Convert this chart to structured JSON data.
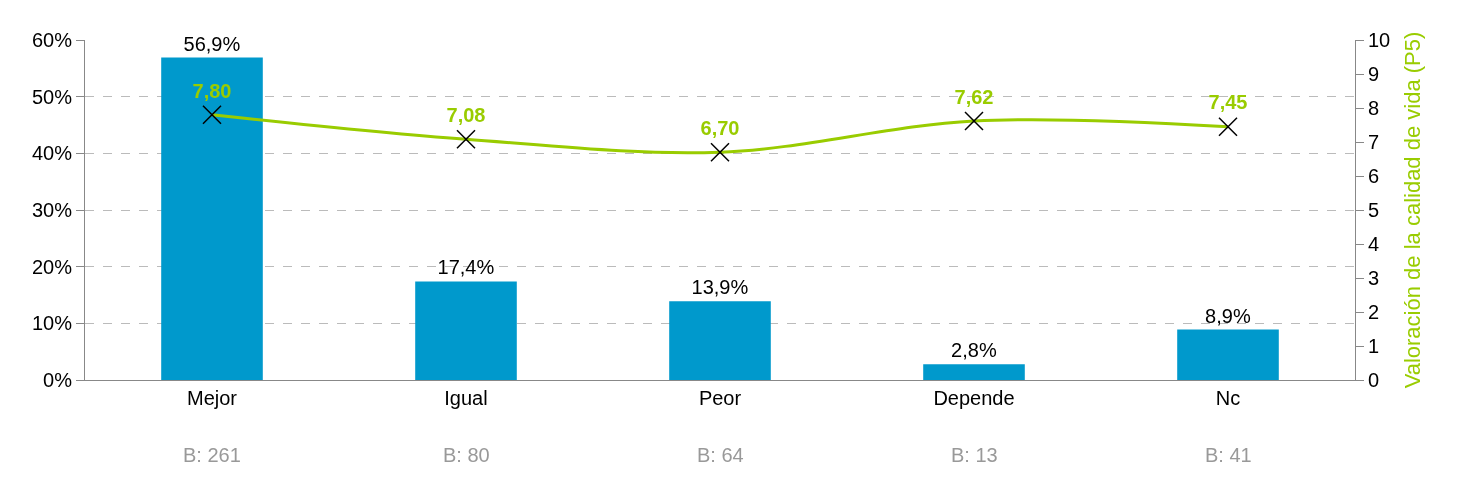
{
  "chart_data": {
    "type": "bar",
    "categories": [
      "Mejor",
      "Igual",
      "Peor",
      "Depende",
      "Nc"
    ],
    "series": [
      {
        "color": "#0099cc",
        "values": [
          56.9,
          17.4,
          13.9,
          2.8,
          8.9
        ],
        "value_labels": [
          "56,9%",
          "17,4%",
          "13,9%",
          "2,8%",
          "8,9%"
        ]
      },
      {
        "type": "line",
        "axis": "y2",
        "color": "#99cc00",
        "marker": "cross",
        "values": [
          7.8,
          7.08,
          6.7,
          7.62,
          7.45
        ],
        "value_labels": [
          "7,80",
          "7,08",
          "6,70",
          "7,62",
          "7,45"
        ]
      }
    ],
    "ylim": [
      0,
      60
    ],
    "yticks": [
      {
        "value": 0,
        "label": "0%"
      },
      {
        "value": 10,
        "label": "10%"
      },
      {
        "value": 20,
        "label": "20%"
      },
      {
        "value": 30,
        "label": "30%"
      },
      {
        "value": 40,
        "label": "40%"
      },
      {
        "value": 50,
        "label": "50%"
      },
      {
        "value": 60,
        "label": "60%"
      }
    ],
    "y2lim": [
      0,
      10
    ],
    "y2ticks": [
      0,
      1,
      2,
      3,
      4,
      5,
      6,
      7,
      8,
      9,
      10
    ],
    "y2label": "Valoración de la calidad de vida (P5)",
    "grid": "y",
    "legend": false,
    "annotations": [
      "B: 261",
      "B: 80",
      "B: 64",
      "B: 13",
      "B: 41"
    ]
  }
}
